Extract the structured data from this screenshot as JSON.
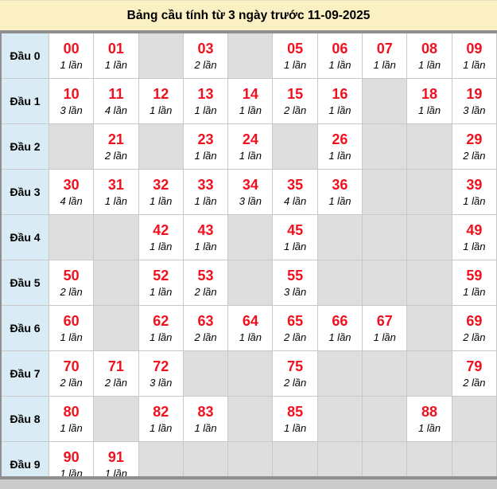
{
  "title": "Bảng cầu tính từ 3 ngày trước 11-09-2025",
  "colors": {
    "title_bg": "#fbf0c4",
    "head_bg": "#d9ebf4",
    "cell_bg": "#ffffff",
    "empty_bg": "#dedede",
    "grid_line": "#c8c8c8",
    "frame": "#8f8f8f",
    "number_red": "#f2101e",
    "text": "#000000",
    "page_bg": "#cbcbcb"
  },
  "rows": [
    {
      "label": "Đầu 0",
      "cells": [
        {
          "num": "00",
          "count": "1 lần"
        },
        {
          "num": "01",
          "count": "1 lần"
        },
        null,
        {
          "num": "03",
          "count": "2 lần"
        },
        null,
        {
          "num": "05",
          "count": "1 lần"
        },
        {
          "num": "06",
          "count": "1 lần"
        },
        {
          "num": "07",
          "count": "1 lần"
        },
        {
          "num": "08",
          "count": "1 lần"
        },
        {
          "num": "09",
          "count": "1 lần"
        }
      ]
    },
    {
      "label": "Đầu 1",
      "cells": [
        {
          "num": "10",
          "count": "3 lần"
        },
        {
          "num": "11",
          "count": "4 lần"
        },
        {
          "num": "12",
          "count": "1 lần"
        },
        {
          "num": "13",
          "count": "1 lần"
        },
        {
          "num": "14",
          "count": "1 lần"
        },
        {
          "num": "15",
          "count": "2 lần"
        },
        {
          "num": "16",
          "count": "1 lần"
        },
        null,
        {
          "num": "18",
          "count": "1 lần"
        },
        {
          "num": "19",
          "count": "3 lần"
        }
      ]
    },
    {
      "label": "Đầu 2",
      "cells": [
        null,
        {
          "num": "21",
          "count": "2 lần"
        },
        null,
        {
          "num": "23",
          "count": "1 lần"
        },
        {
          "num": "24",
          "count": "1 lần"
        },
        null,
        {
          "num": "26",
          "count": "1 lần"
        },
        null,
        null,
        {
          "num": "29",
          "count": "2 lần"
        }
      ]
    },
    {
      "label": "Đầu 3",
      "cells": [
        {
          "num": "30",
          "count": "4 lần"
        },
        {
          "num": "31",
          "count": "1 lần"
        },
        {
          "num": "32",
          "count": "1 lần"
        },
        {
          "num": "33",
          "count": "1 lần"
        },
        {
          "num": "34",
          "count": "3 lần"
        },
        {
          "num": "35",
          "count": "4 lần"
        },
        {
          "num": "36",
          "count": "1 lần"
        },
        null,
        null,
        {
          "num": "39",
          "count": "1 lần"
        }
      ]
    },
    {
      "label": "Đầu 4",
      "cells": [
        null,
        null,
        {
          "num": "42",
          "count": "1 lần"
        },
        {
          "num": "43",
          "count": "1 lần"
        },
        null,
        {
          "num": "45",
          "count": "1 lần"
        },
        null,
        null,
        null,
        {
          "num": "49",
          "count": "1 lần"
        }
      ]
    },
    {
      "label": "Đầu 5",
      "cells": [
        {
          "num": "50",
          "count": "2 lần"
        },
        null,
        {
          "num": "52",
          "count": "1 lần"
        },
        {
          "num": "53",
          "count": "2 lần"
        },
        null,
        {
          "num": "55",
          "count": "3 lần"
        },
        null,
        null,
        null,
        {
          "num": "59",
          "count": "1 lần"
        }
      ]
    },
    {
      "label": "Đầu 6",
      "cells": [
        {
          "num": "60",
          "count": "1 lần"
        },
        null,
        {
          "num": "62",
          "count": "1 lần"
        },
        {
          "num": "63",
          "count": "2 lần"
        },
        {
          "num": "64",
          "count": "1 lần"
        },
        {
          "num": "65",
          "count": "2 lần"
        },
        {
          "num": "66",
          "count": "1 lần"
        },
        {
          "num": "67",
          "count": "1 lần"
        },
        null,
        {
          "num": "69",
          "count": "2 lần"
        }
      ]
    },
    {
      "label": "Đầu 7",
      "cells": [
        {
          "num": "70",
          "count": "2 lần"
        },
        {
          "num": "71",
          "count": "2 lần"
        },
        {
          "num": "72",
          "count": "3 lần"
        },
        null,
        null,
        {
          "num": "75",
          "count": "2 lần"
        },
        null,
        null,
        null,
        {
          "num": "79",
          "count": "2 lần"
        }
      ]
    },
    {
      "label": "Đầu 8",
      "cells": [
        {
          "num": "80",
          "count": "1 lần"
        },
        null,
        {
          "num": "82",
          "count": "1 lần"
        },
        {
          "num": "83",
          "count": "1 lần"
        },
        null,
        {
          "num": "85",
          "count": "1 lần"
        },
        null,
        null,
        {
          "num": "88",
          "count": "1 lần"
        },
        null
      ]
    },
    {
      "label": "Đầu 9",
      "cells": [
        {
          "num": "90",
          "count": "1 lần"
        },
        {
          "num": "91",
          "count": "1 lần"
        },
        null,
        null,
        null,
        null,
        null,
        null,
        null,
        null
      ]
    }
  ]
}
